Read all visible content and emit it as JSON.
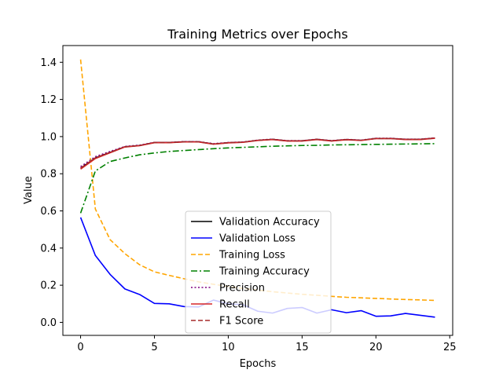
{
  "chart_data": {
    "type": "line",
    "title": "Training Metrics over Epochs",
    "xlabel": "Epochs",
    "ylabel": "Value",
    "xlim": [
      -1.2,
      25.2
    ],
    "ylim": [
      -0.07,
      1.49
    ],
    "xticks": [
      0,
      5,
      10,
      15,
      20,
      25
    ],
    "yticks": [
      0.0,
      0.2,
      0.4,
      0.6,
      0.8,
      1.0,
      1.2,
      1.4
    ],
    "grid": false,
    "legend_position": "lower center",
    "x": [
      0,
      1,
      2,
      3,
      4,
      5,
      6,
      7,
      8,
      9,
      10,
      11,
      12,
      13,
      14,
      15,
      16,
      17,
      18,
      19,
      20,
      21,
      22,
      23,
      24
    ],
    "series": [
      {
        "name": "Validation Accuracy",
        "color": "#000000",
        "dash": "solid",
        "values": [
          0.83,
          0.885,
          0.915,
          0.945,
          0.952,
          0.968,
          0.968,
          0.972,
          0.972,
          0.96,
          0.967,
          0.97,
          0.98,
          0.985,
          0.977,
          0.977,
          0.985,
          0.977,
          0.984,
          0.98,
          0.99,
          0.99,
          0.985,
          0.985,
          0.992
        ]
      },
      {
        "name": "Validation Loss",
        "color": "#0000ff",
        "dash": "solid",
        "values": [
          0.565,
          0.36,
          0.258,
          0.18,
          0.15,
          0.102,
          0.1,
          0.085,
          0.083,
          0.12,
          0.1,
          0.095,
          0.06,
          0.05,
          0.075,
          0.08,
          0.05,
          0.068,
          0.052,
          0.063,
          0.033,
          0.035,
          0.048,
          0.038,
          0.028
        ]
      },
      {
        "name": "Training Loss",
        "color": "#ffa500",
        "dash": "dashed",
        "values": [
          1.415,
          0.61,
          0.445,
          0.37,
          0.31,
          0.272,
          0.253,
          0.235,
          0.218,
          0.205,
          0.193,
          0.183,
          0.174,
          0.165,
          0.158,
          0.151,
          0.146,
          0.14,
          0.135,
          0.132,
          0.129,
          0.126,
          0.123,
          0.121,
          0.118
        ]
      },
      {
        "name": "Training Accuracy",
        "color": "#008000",
        "dash": "dashdot",
        "values": [
          0.588,
          0.815,
          0.866,
          0.885,
          0.902,
          0.912,
          0.92,
          0.925,
          0.93,
          0.935,
          0.939,
          0.942,
          0.945,
          0.948,
          0.95,
          0.952,
          0.953,
          0.955,
          0.956,
          0.957,
          0.958,
          0.959,
          0.96,
          0.961,
          0.962
        ]
      },
      {
        "name": "Precision",
        "color": "#800080",
        "dash": "dotted",
        "values": [
          0.838,
          0.892,
          0.92,
          0.947,
          0.954,
          0.969,
          0.969,
          0.973,
          0.973,
          0.962,
          0.968,
          0.971,
          0.981,
          0.986,
          0.978,
          0.978,
          0.986,
          0.978,
          0.985,
          0.981,
          0.991,
          0.991,
          0.986,
          0.986,
          0.993
        ]
      },
      {
        "name": "Recall",
        "color": "#d62728",
        "dash": "solid",
        "values": [
          0.825,
          0.882,
          0.913,
          0.944,
          0.951,
          0.967,
          0.967,
          0.971,
          0.971,
          0.959,
          0.966,
          0.969,
          0.979,
          0.984,
          0.976,
          0.976,
          0.984,
          0.976,
          0.983,
          0.979,
          0.989,
          0.989,
          0.984,
          0.984,
          0.991
        ]
      },
      {
        "name": "F1 Score",
        "color": "#a52a2a",
        "dash": "dashed",
        "values": [
          0.83,
          0.886,
          0.915,
          0.945,
          0.952,
          0.968,
          0.968,
          0.972,
          0.972,
          0.96,
          0.967,
          0.97,
          0.98,
          0.985,
          0.977,
          0.977,
          0.985,
          0.977,
          0.984,
          0.98,
          0.99,
          0.99,
          0.985,
          0.985,
          0.992
        ]
      }
    ]
  }
}
